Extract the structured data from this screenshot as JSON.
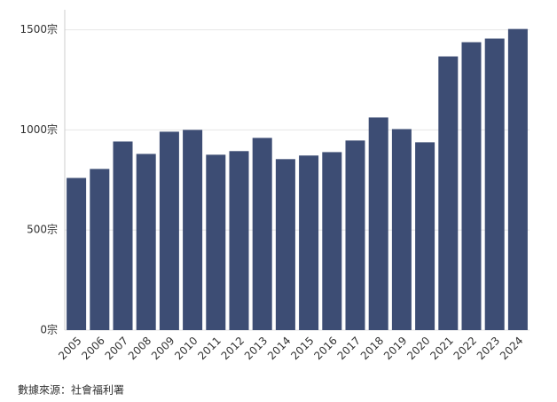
{
  "chart_data": {
    "type": "bar",
    "categories": [
      "2005",
      "2006",
      "2007",
      "2008",
      "2009",
      "2010",
      "2011",
      "2012",
      "2013",
      "2014",
      "2015",
      "2016",
      "2017",
      "2018",
      "2019",
      "2020",
      "2021",
      "2022",
      "2023",
      "2024"
    ],
    "values": [
      760,
      805,
      942,
      880,
      991,
      1000,
      876,
      894,
      960,
      854,
      872,
      889,
      947,
      1062,
      1004,
      938,
      1367,
      1438,
      1456,
      1504
    ],
    "color": "#3d4d74",
    "ylim": [
      0,
      1600
    ],
    "yticks": [
      {
        "value": 0,
        "label": "0宗"
      },
      {
        "value": 500,
        "label": "500宗"
      },
      {
        "value": 1000,
        "label": "1000宗"
      },
      {
        "value": 1500,
        "label": "1500宗"
      }
    ],
    "grid": true,
    "source": "數據來源：社會福利署"
  }
}
